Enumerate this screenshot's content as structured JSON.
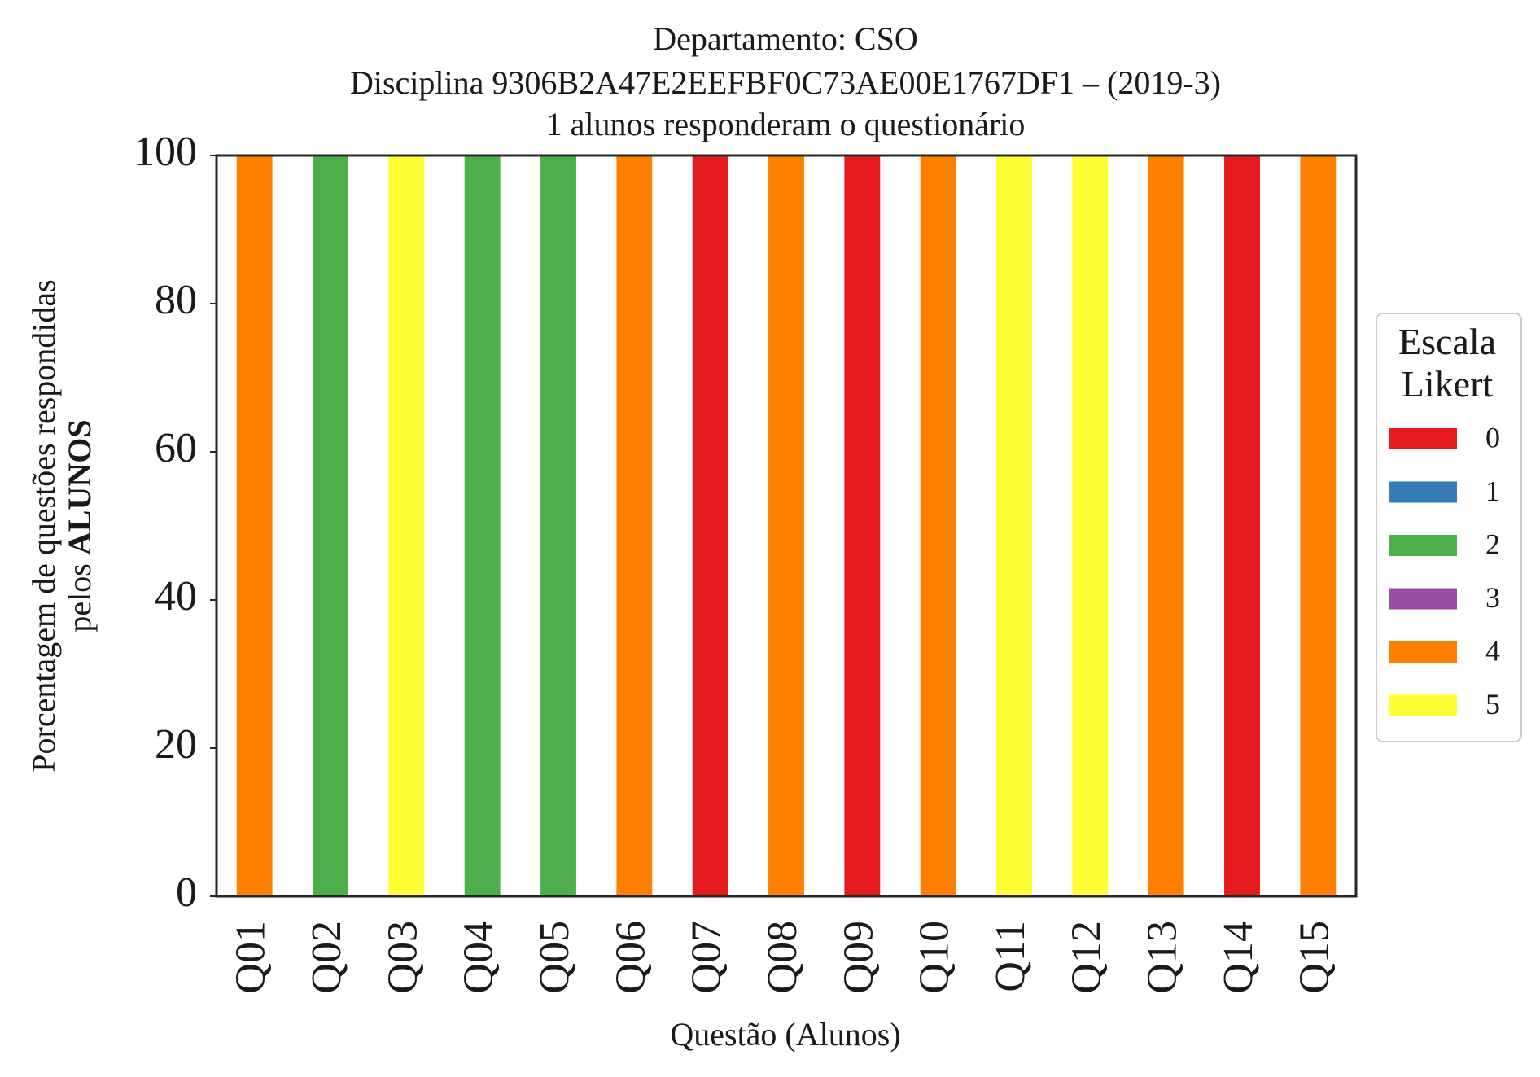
{
  "chart_data": {
    "type": "bar",
    "stacked": true,
    "title_lines": [
      "Departamento: CSO",
      "Disciplina 9306B2A47E2EEFBF0C73AE00E1767DF1 – (2019-3)",
      "1 alunos responderam o questionário"
    ],
    "xlabel": "Questão (Alunos)",
    "ylabel_line1": "Porcentagem de questões respondidas",
    "ylabel_line2_prefix": "pelos ",
    "ylabel_line2_bold": "ALUNOS",
    "ylim": [
      0,
      100
    ],
    "yticks": [
      "0",
      "20",
      "40",
      "60",
      "80",
      "100"
    ],
    "grid": false,
    "legend_position": "right",
    "legend_title_lines": [
      "Escala",
      "Likert"
    ],
    "categories": [
      "Q01",
      "Q02",
      "Q03",
      "Q04",
      "Q05",
      "Q06",
      "Q07",
      "Q08",
      "Q09",
      "Q10",
      "Q11",
      "Q12",
      "Q13",
      "Q14",
      "Q15"
    ],
    "series": [
      {
        "name": "0",
        "color": "#e41a1c",
        "values": [
          0,
          0,
          0,
          0,
          0,
          0,
          100,
          0,
          100,
          0,
          0,
          0,
          0,
          100,
          0
        ]
      },
      {
        "name": "1",
        "color": "#377eb8",
        "values": [
          0,
          0,
          0,
          0,
          0,
          0,
          0,
          0,
          0,
          0,
          0,
          0,
          0,
          0,
          0
        ]
      },
      {
        "name": "2",
        "color": "#4daf4a",
        "values": [
          0,
          100,
          0,
          100,
          100,
          0,
          0,
          0,
          0,
          0,
          0,
          0,
          0,
          0,
          0
        ]
      },
      {
        "name": "3",
        "color": "#984ea3",
        "values": [
          0,
          0,
          0,
          0,
          0,
          0,
          0,
          0,
          0,
          0,
          0,
          0,
          0,
          0,
          0
        ]
      },
      {
        "name": "4",
        "color": "#ff7f00",
        "values": [
          100,
          0,
          0,
          0,
          0,
          100,
          0,
          100,
          0,
          100,
          0,
          0,
          100,
          0,
          100
        ]
      },
      {
        "name": "5",
        "color": "#ffff33",
        "values": [
          0,
          0,
          100,
          0,
          0,
          0,
          0,
          0,
          0,
          0,
          100,
          100,
          0,
          0,
          0
        ]
      }
    ]
  }
}
